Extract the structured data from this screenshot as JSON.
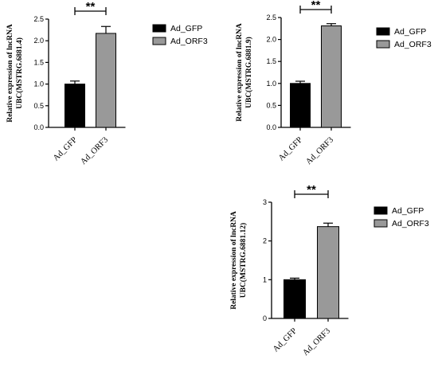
{
  "chart_data": [
    {
      "type": "bar",
      "ylabel_lines": [
        "Relative expression of lncRNA",
        "UBC(MSTRG.6881.4)"
      ],
      "categories": [
        "Ad_GFP",
        "Ad_ORF3"
      ],
      "values": [
        1.0,
        2.17
      ],
      "errors": [
        0.07,
        0.16
      ],
      "ylim": [
        0,
        2.5
      ],
      "yticks": [
        "0.0",
        "0.5",
        "1.0",
        "1.5",
        "2.0",
        "2.5"
      ],
      "significance": "**",
      "legend": [
        "Ad_GFP",
        "Ad_ORF3"
      ],
      "colors": [
        "#000000",
        "#999999"
      ],
      "grid": false
    },
    {
      "type": "bar",
      "ylabel_lines": [
        "Relative expression of lncRNA",
        "UBC(MSTRG.6881.9)"
      ],
      "categories": [
        "Ad_GFP",
        "Ad_ORF3"
      ],
      "values": [
        1.0,
        2.31
      ],
      "errors": [
        0.05,
        0.05
      ],
      "ylim": [
        0,
        2.5
      ],
      "yticks": [
        "0.0",
        "0.5",
        "1.0",
        "1.5",
        "2.0",
        "2.5"
      ],
      "significance": "**",
      "legend": [
        "Ad_GFP",
        "Ad_ORF3"
      ],
      "colors": [
        "#000000",
        "#999999"
      ],
      "grid": false
    },
    {
      "type": "bar",
      "ylabel_lines": [
        "Relative expression of lncRNA",
        "UBC(MSTRG.6881.12)"
      ],
      "categories": [
        "Ad_GFP",
        "Ad_ORF3"
      ],
      "values": [
        1.0,
        2.37
      ],
      "errors": [
        0.04,
        0.09
      ],
      "ylim": [
        0,
        3
      ],
      "yticks": [
        "0",
        "1",
        "2",
        "3"
      ],
      "significance": "**",
      "legend": [
        "Ad_GFP",
        "Ad_ORF3"
      ],
      "colors": [
        "#000000",
        "#999999"
      ],
      "grid": false
    }
  ]
}
